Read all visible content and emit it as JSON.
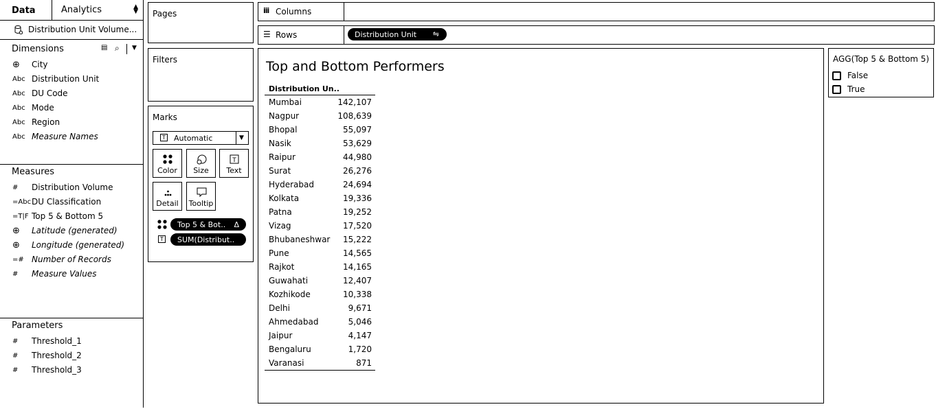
{
  "data_pane": {
    "tab_data": "Data",
    "tab_analytics": "Analytics",
    "datasource": "Distribution Unit Volume...",
    "dimensions_title": "Dimensions",
    "dimensions": [
      {
        "icon": "globe-icon",
        "type": "",
        "label": "City",
        "italic": false
      },
      {
        "icon": "abc-icon",
        "type": "Abc",
        "label": "Distribution Unit",
        "italic": false
      },
      {
        "icon": "abc-icon",
        "type": "Abc",
        "label": "DU Code",
        "italic": false
      },
      {
        "icon": "abc-icon",
        "type": "Abc",
        "label": "Mode",
        "italic": false
      },
      {
        "icon": "abc-icon",
        "type": "Abc",
        "label": "Region",
        "italic": false
      },
      {
        "icon": "abc-icon",
        "type": "Abc",
        "label": "Measure Names",
        "italic": true
      }
    ],
    "measures_title": "Measures",
    "measures": [
      {
        "icon": "hash-icon",
        "type": "#",
        "label": "Distribution Volume",
        "italic": false
      },
      {
        "icon": "calc-abc-icon",
        "type": "=Abc",
        "label": "DU Classification",
        "italic": false
      },
      {
        "icon": "calc-tf-icon",
        "type": "=T|F",
        "label": "Top 5 & Bottom 5",
        "italic": false
      },
      {
        "icon": "globe-icon",
        "type": "",
        "label": "Latitude (generated)",
        "italic": true
      },
      {
        "icon": "globe-icon",
        "type": "",
        "label": "Longitude (generated)",
        "italic": true
      },
      {
        "icon": "calc-hash-icon",
        "type": "=#",
        "label": "Number of Records",
        "italic": true
      },
      {
        "icon": "hash-icon",
        "type": "#",
        "label": "Measure Values",
        "italic": true
      }
    ],
    "parameters_title": "Parameters",
    "parameters": [
      {
        "icon": "hash-icon",
        "type": "#",
        "label": "Threshold_1"
      },
      {
        "icon": "hash-icon",
        "type": "#",
        "label": "Threshold_2"
      },
      {
        "icon": "hash-icon",
        "type": "#",
        "label": "Threshold_3"
      }
    ]
  },
  "shelves": {
    "pages": "Pages",
    "filters": "Filters",
    "marks": "Marks",
    "mark_type": "Automatic",
    "mark_buttons": [
      "Color",
      "Size",
      "Text",
      "Detail",
      "Tooltip"
    ],
    "marks_pills": [
      {
        "icon": "color-dots-icon",
        "label": "Top 5 & Bot..",
        "delta": "Δ"
      },
      {
        "icon": "text-icon",
        "label": "SUM(Distribut..",
        "delta": ""
      }
    ],
    "columns": "Columns",
    "rows": "Rows",
    "rows_pill": "Distribution Unit"
  },
  "viz": {
    "title": "Top and Bottom Performers",
    "column_header": "Distribution Un..",
    "rows": [
      {
        "city": "Mumbai",
        "value": "142,107"
      },
      {
        "city": "Nagpur",
        "value": "108,639"
      },
      {
        "city": "Bhopal",
        "value": "55,097"
      },
      {
        "city": "Nasik",
        "value": "53,629"
      },
      {
        "city": "Raipur",
        "value": "44,980"
      },
      {
        "city": "Surat",
        "value": "26,276"
      },
      {
        "city": "Hyderabad",
        "value": "24,694"
      },
      {
        "city": "Kolkata",
        "value": "19,336"
      },
      {
        "city": "Patna",
        "value": "19,252"
      },
      {
        "city": "Vizag",
        "value": "17,520"
      },
      {
        "city": "Bhubaneshwar",
        "value": "15,222"
      },
      {
        "city": "Pune",
        "value": "14,565"
      },
      {
        "city": "Rajkot",
        "value": "14,165"
      },
      {
        "city": "Guwahati",
        "value": "12,407"
      },
      {
        "city": "Kozhikode",
        "value": "10,338"
      },
      {
        "city": "Delhi",
        "value": "9,671"
      },
      {
        "city": "Ahmedabad",
        "value": "5,046"
      },
      {
        "city": "Jaipur",
        "value": "4,147"
      },
      {
        "city": "Bengaluru",
        "value": "1,720"
      },
      {
        "city": "Varanasi",
        "value": "871"
      }
    ]
  },
  "legend": {
    "title": "AGG(Top 5 & Bottom 5)",
    "items": [
      {
        "label": "False",
        "color": "#ffffff"
      },
      {
        "label": "True",
        "color": "#ffffff"
      }
    ]
  }
}
